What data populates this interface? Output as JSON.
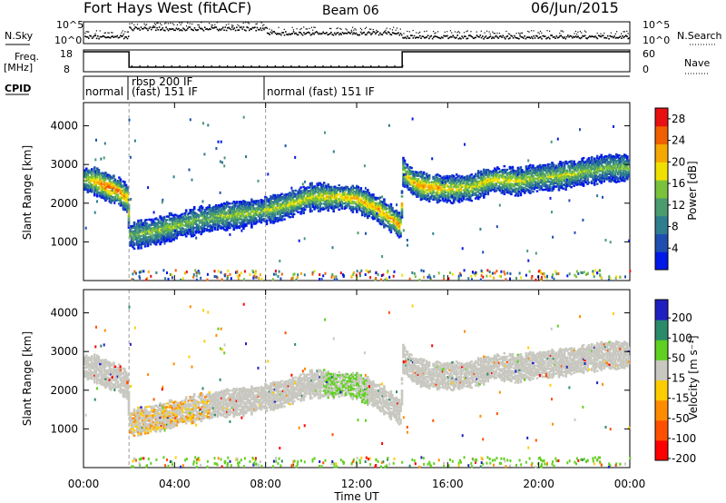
{
  "header": {
    "title": "Fort Hays West (fitACF)",
    "beam": "Beam 06",
    "date": "06/Jun/2015"
  },
  "strip_labels": {
    "nsky": "N.Sky",
    "nsearch": "N.Search",
    "freq": "Freq.",
    "freq_unit": "[MHz]",
    "nave": "Nave",
    "cpid": "CPID"
  },
  "strip_ticks": {
    "noise_top": "10^5",
    "noise_bottom": "10^0",
    "freq_top": "18",
    "freq_bottom": "8",
    "nave_top": "60",
    "nave_bottom": "0"
  },
  "cpid_labels": [
    "normal",
    "rbsp 200 IF",
    "(fast) 151 IF",
    "normal (fast) 151 IF"
  ],
  "colors": {
    "power_scale": [
      "#0018e8",
      "#1e4fb0",
      "#2f7d8e",
      "#4a9b6e",
      "#7bc23c",
      "#f0e000",
      "#f5a800",
      "#f06000",
      "#e81010"
    ],
    "velocity_scale": [
      "#ff0000",
      "#ff5000",
      "#ff8c00",
      "#ffcc00",
      "#c8c8c0",
      "#60d020",
      "#2a8a6a",
      "#2020c0"
    ],
    "ground_scatter": "#c8c8c0"
  },
  "chart_data": [
    {
      "type": "heatmap",
      "name": "power",
      "ylabel": "Slant Range [km]",
      "yticks": [
        "1000",
        "2000",
        "3000",
        "4000"
      ],
      "ylim": [
        0,
        4600
      ],
      "xlim_hours": [
        0,
        24
      ],
      "xticks": [
        "00:00",
        "04:00",
        "08:00",
        "12:00",
        "16:00",
        "20:00",
        "00:00"
      ],
      "colorbar_label": "Power [dB]",
      "colorbar_ticks": [
        "4",
        "8",
        "12",
        "16",
        "20",
        "24",
        "28"
      ],
      "colorbar_range": [
        0,
        30
      ],
      "echo_band_km": {
        "t": [
          0.0,
          0.5,
          1.0,
          1.5,
          1.9,
          2.0,
          3.0,
          4.0,
          5.0,
          6.0,
          7.0,
          8.0,
          9.0,
          10.0,
          11.0,
          12.0,
          13.0,
          13.9,
          14.0,
          14.5,
          15.0,
          16.0,
          17.0,
          18.0,
          19.0,
          20.0,
          21.0,
          22.0,
          23.0,
          24.0
        ],
        "center": [
          2600,
          2550,
          2400,
          2300,
          2100,
          1150,
          1250,
          1400,
          1550,
          1650,
          1700,
          1800,
          1950,
          2150,
          2150,
          2100,
          1800,
          1400,
          2800,
          2500,
          2400,
          2350,
          2400,
          2600,
          2550,
          2650,
          2700,
          2800,
          2900,
          2900
        ],
        "power": [
          16,
          22,
          26,
          25,
          22,
          14,
          16,
          16,
          14,
          16,
          16,
          16,
          18,
          18,
          20,
          22,
          22,
          24,
          18,
          22,
          24,
          20,
          18,
          20,
          18,
          16,
          18,
          16,
          14,
          16
        ]
      }
    },
    {
      "type": "heatmap",
      "name": "velocity",
      "ylabel": "Slant Range [km]",
      "yticks": [
        "1000",
        "2000",
        "3000",
        "4000"
      ],
      "ylim": [
        0,
        4600
      ],
      "xlim_hours": [
        0,
        24
      ],
      "xlabel": "Time UT",
      "xticks": [
        "00:00",
        "04:00",
        "08:00",
        "12:00",
        "16:00",
        "20:00",
        "00:00"
      ],
      "colorbar_label": "Velocity [m s⁻¹]",
      "colorbar_ticks": [
        "200",
        "100",
        "50",
        "15",
        "-15",
        "-50",
        "-100",
        "-200"
      ],
      "colorbar_range": [
        -250,
        250
      ]
    }
  ],
  "strip_data": {
    "cpid_change_hours": [
      2.0,
      8.0
    ],
    "freq_high_hours": [
      [
        0,
        2.0
      ],
      [
        14.0,
        24
      ]
    ]
  }
}
